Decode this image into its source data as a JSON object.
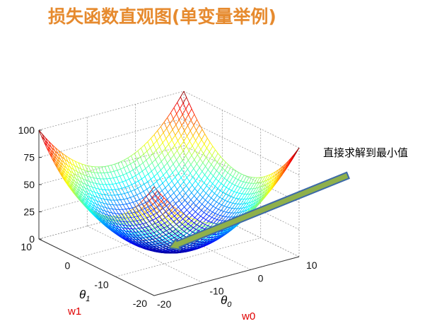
{
  "title": "损失函数直观图(单变量举例)",
  "annotation": "直接求解到最小值",
  "colors": {
    "title": "#e68a2e",
    "annotation_arrow": "#8fb04b",
    "red_label": "#e00000"
  },
  "chart_data": {
    "type": "surface",
    "surface": "bowl",
    "colormap": "jet",
    "grid": true,
    "minimum": {
      "theta0": -5,
      "theta1": -5,
      "z": 0
    },
    "z_ticks": [
      "0",
      "25",
      "50",
      "75",
      "100"
    ],
    "theta1_ticks": [
      "10",
      "0",
      "-10",
      "-20"
    ],
    "theta0_ticks": [
      "-20",
      "-10",
      "0",
      "10"
    ],
    "xlim": [
      -20,
      10
    ],
    "ylim": [
      -20,
      10
    ],
    "zlim": [
      0,
      100
    ],
    "xlabel_symbol": "θ",
    "xlabel_sub": "0",
    "ylabel_symbol": "θ",
    "ylabel_sub": "1",
    "w1_label": "w1",
    "w0_label": "w0"
  }
}
